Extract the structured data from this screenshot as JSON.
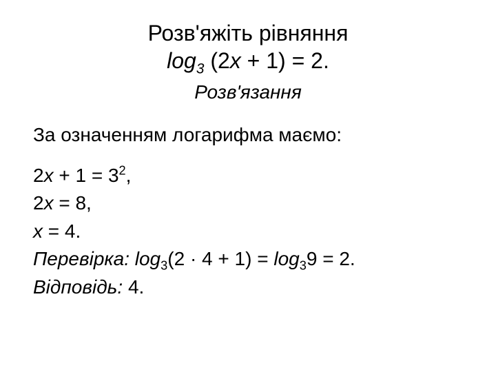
{
  "colors": {
    "background": "#ffffff",
    "text": "#000000"
  },
  "typography": {
    "family": "Arial",
    "title_size_pt": 32,
    "body_size_pt": 28,
    "subtitle_style": "italic"
  },
  "title": {
    "line1": "Розв'яжіть рівняння",
    "line2_log": "log",
    "line2_sub": "3",
    "line2_open": " (2",
    "line2_var1": "х",
    "line2_rest": " + 1) = 2."
  },
  "subtitle": "Розв'язання",
  "intro": "За означенням логарифма маємо:",
  "step1": {
    "lead": "2",
    "var": "х",
    "mid": " + 1 = 3",
    "sup": "2",
    "tail": ","
  },
  "step2": {
    "lead": "2",
    "var": "х",
    "tail": " = 8,"
  },
  "step3": {
    "var": "х",
    "tail": " = 4."
  },
  "check": {
    "label": "Перевірка: ",
    "log1": "log",
    "sub1": "3",
    "mid1": "(2 · 4 + 1) = ",
    "log2": "log",
    "sub2": "3",
    "mid2": "9 = 2."
  },
  "answer": {
    "label": "Відповідь: ",
    "value": "4."
  }
}
